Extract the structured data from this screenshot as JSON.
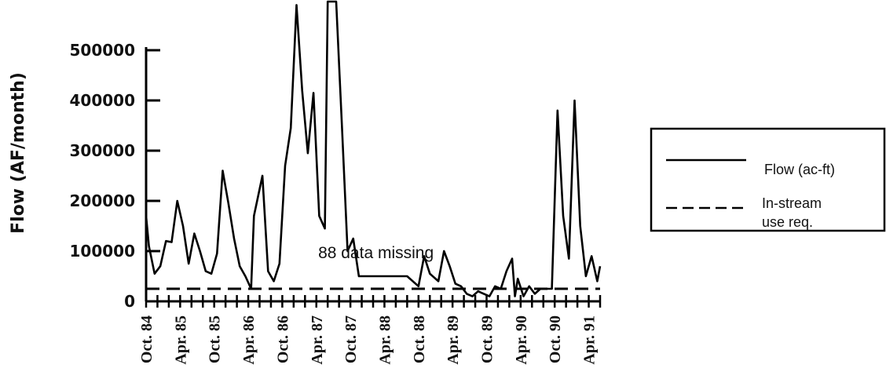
{
  "chart_data": {
    "type": "line",
    "ylabel": "Flow (AF/month)",
    "ylim": [
      0,
      600000
    ],
    "yticks": [
      {
        "value": 0,
        "label": "0"
      },
      {
        "value": 100000,
        "label": "100000"
      },
      {
        "value": 200000,
        "label": "200000"
      },
      {
        "value": 300000,
        "label": "300000"
      },
      {
        "value": 400000,
        "label": "400000"
      },
      {
        "value": 500000,
        "label": "500000"
      }
    ],
    "x_start_index": 0,
    "x_end_index": 90,
    "xtick_labels": [
      "Oct. 84",
      "Apr. 85",
      "Oct. 85",
      "Apr. 86",
      "Oct. 86",
      "Apr. 87",
      "Oct. 87",
      "Apr. 88",
      "Oct. 88",
      "Apr. 89",
      "Oct. 89",
      "Apr. 90",
      "Oct. 90",
      "Apr. 91"
    ],
    "xtick_positions": [
      0,
      6,
      12,
      18,
      24,
      30,
      36,
      42,
      48,
      54,
      60,
      66,
      72,
      78
    ],
    "annotation": "88 data missing",
    "annotation_x_index": 40.5,
    "annotation_y_value": 97000,
    "legend": {
      "position": "right",
      "entries": [
        {
          "label": "Flow (ac-ft)",
          "style": "solid"
        },
        {
          "label": "In-stream use req.",
          "style": "dashed"
        }
      ]
    },
    "series": [
      {
        "name": "Flow (ac-ft)",
        "style": "solid",
        "color": "#000000",
        "points": [
          [
            0,
            170000
          ],
          [
            0.5,
            110000
          ],
          [
            1.5,
            55000
          ],
          [
            2.5,
            70000
          ],
          [
            3.5,
            120000
          ],
          [
            4.5,
            118000
          ],
          [
            5.5,
            200000
          ],
          [
            6.5,
            150000
          ],
          [
            7.5,
            75000
          ],
          [
            8.5,
            135000
          ],
          [
            9.5,
            100000
          ],
          [
            10.5,
            60000
          ],
          [
            11.5,
            55000
          ],
          [
            12.5,
            95000
          ],
          [
            13.5,
            260000
          ],
          [
            14.5,
            195000
          ],
          [
            15.5,
            125000
          ],
          [
            16.5,
            70000
          ],
          [
            17.5,
            50000
          ],
          [
            18.5,
            25000
          ],
          [
            19,
            170000
          ],
          [
            20.5,
            250000
          ],
          [
            21.5,
            60000
          ],
          [
            22.5,
            40000
          ],
          [
            23.5,
            75000
          ],
          [
            24.5,
            270000
          ],
          [
            25.5,
            345000
          ],
          [
            26.5,
            590000
          ],
          [
            27.5,
            420000
          ],
          [
            28.5,
            295000
          ],
          [
            29.5,
            415000
          ],
          [
            30.5,
            170000
          ],
          [
            31.5,
            145000
          ],
          [
            32,
            640000
          ],
          [
            33.5,
            630000
          ],
          [
            34.5,
            350000
          ],
          [
            35.5,
            100000
          ],
          [
            36.5,
            125000
          ],
          [
            37.5,
            50000
          ],
          [
            46,
            50000
          ],
          [
            48,
            30000
          ],
          [
            49,
            90000
          ],
          [
            50,
            55000
          ],
          [
            51.5,
            40000
          ],
          [
            52.5,
            100000
          ],
          [
            53.5,
            70000
          ],
          [
            54.5,
            35000
          ],
          [
            55.5,
            30000
          ],
          [
            56.5,
            15000
          ],
          [
            57.5,
            10000
          ],
          [
            58.5,
            20000
          ],
          [
            59.5,
            15000
          ],
          [
            60.5,
            10000
          ],
          [
            61.5,
            30000
          ],
          [
            62.5,
            25000
          ],
          [
            63.5,
            60000
          ],
          [
            64.5,
            85000
          ],
          [
            65,
            10000
          ],
          [
            65.5,
            45000
          ],
          [
            66.5,
            10000
          ],
          [
            67.5,
            30000
          ],
          [
            68.5,
            15000
          ],
          [
            69.5,
            25000
          ],
          [
            71.5,
            25000
          ],
          [
            72.5,
            380000
          ],
          [
            73.5,
            170000
          ],
          [
            74.5,
            85000
          ],
          [
            75.5,
            400000
          ],
          [
            76.5,
            150000
          ],
          [
            77.5,
            50000
          ],
          [
            78.5,
            90000
          ],
          [
            79.5,
            40000
          ],
          [
            80,
            70000
          ]
        ]
      },
      {
        "name": "In-stream use req.",
        "style": "dashed",
        "color": "#000000",
        "points": [
          [
            0,
            25000
          ],
          [
            80,
            25000
          ]
        ]
      }
    ]
  }
}
